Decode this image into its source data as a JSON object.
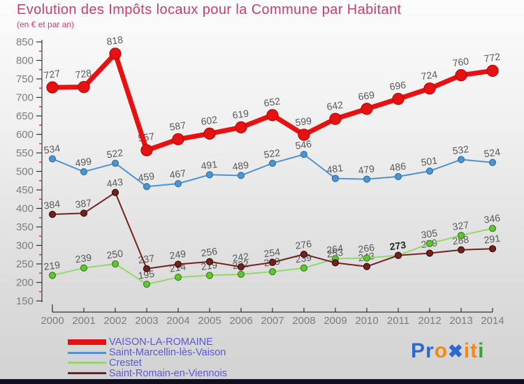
{
  "header": {
    "title": "Evolution des Impôts locaux pour la Commune par Habitant",
    "subtitle": "(en € et par an)",
    "title_color": "#cb3c6e"
  },
  "chart_data": {
    "type": "line",
    "title": "Evolution des Impôts locaux pour la Commune par Habitant",
    "subtitle": "(en € et par an)",
    "x": [
      2000,
      2001,
      2002,
      2003,
      2004,
      2005,
      2006,
      2007,
      2008,
      2009,
      2010,
      2011,
      2012,
      2013,
      2014
    ],
    "series": [
      {
        "name": "VAISON-LA-ROMAINE",
        "color": "#e81111",
        "marker_fill": "#e81111",
        "marker_stroke": "#b30c0c",
        "line_width": 7,
        "marker_radius": 8,
        "values": [
          727,
          728,
          818,
          557,
          587,
          602,
          619,
          652,
          599,
          642,
          669,
          696,
          724,
          760,
          772
        ]
      },
      {
        "name": "Saint-Marcellin-lès-Vaison",
        "color": "#4d94d0",
        "marker_fill": "#4d94d0",
        "marker_stroke": "#3577ae",
        "line_width": 2,
        "marker_radius": 4.5,
        "values": [
          534,
          499,
          522,
          459,
          467,
          491,
          489,
          522,
          546,
          481,
          479,
          486,
          501,
          532,
          524
        ]
      },
      {
        "name": "Crestet",
        "color": "#93d968",
        "marker_fill": "#62c437",
        "marker_stroke": "#3e8a1d",
        "line_width": 2,
        "marker_radius": 4.5,
        "values": [
          219,
          239,
          250,
          195,
          214,
          219,
          222,
          229,
          239,
          264,
          266,
          273,
          305,
          327,
          346
        ]
      },
      {
        "name": "Saint-Romain-en-Viennois",
        "color": "#6f2320",
        "marker_fill": "#6f2320",
        "marker_stroke": "#471110",
        "line_width": 2,
        "marker_radius": 4.5,
        "values": [
          384,
          387,
          443,
          237,
          249,
          256,
          242,
          254,
          276,
          253,
          243,
          273,
          279,
          288,
          291
        ]
      }
    ],
    "ylim": [
      150,
      850
    ],
    "ytick_step": 50,
    "yminor_step": 25,
    "xlabel": "",
    "ylabel": "",
    "grid": false,
    "legend_position": "bottom-left",
    "label_color": "#595959",
    "axis_label_color": "#7d7d7d",
    "minor_tick_color": "#cc3333",
    "axis_color": "#333333"
  },
  "logo": {
    "name": "Proxiti",
    "letters": [
      {
        "ch": "P",
        "color": "#2d6ad0"
      },
      {
        "ch": "r",
        "color": "#2d6ad0"
      },
      {
        "ch": "o",
        "color": "#f08a12"
      },
      {
        "ch": "✖",
        "color": "#2d6ad0"
      },
      {
        "ch": "i",
        "color": "#f08a12"
      },
      {
        "ch": "t",
        "color": "#f08a12"
      },
      {
        "ch": "i",
        "color": "#35a42e"
      }
    ]
  }
}
